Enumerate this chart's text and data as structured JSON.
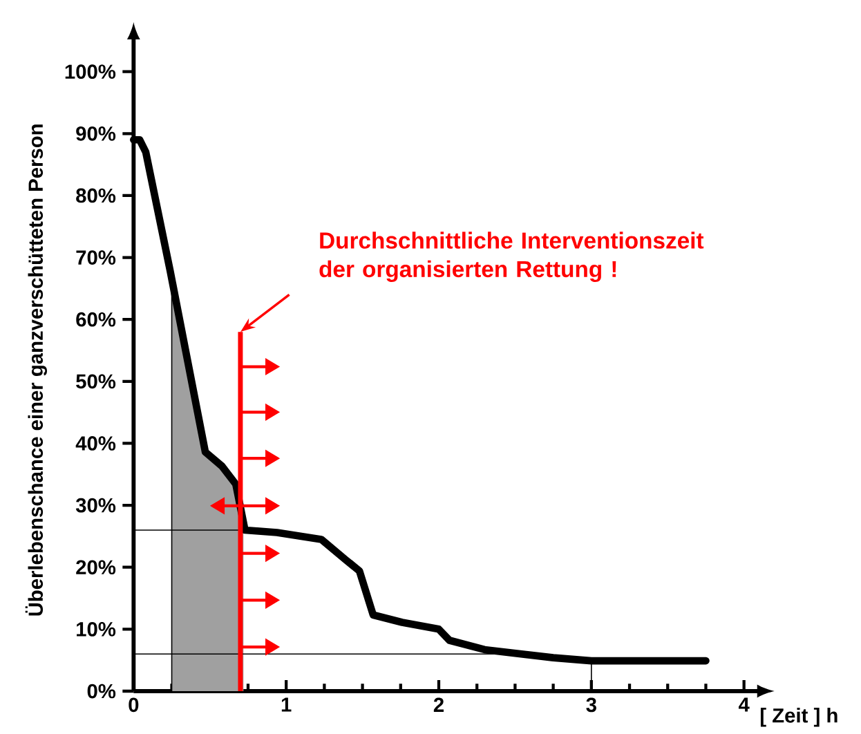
{
  "chart_data": {
    "type": "line",
    "ylabel": "Überlebenschance einer ganzverschütteten Person",
    "xlabel": "[ Zeit ] h",
    "x": [
      0,
      0.04,
      0.08,
      0.24,
      0.47,
      0.58,
      0.67,
      0.73,
      0.94,
      1.23,
      1.39,
      1.48,
      1.57,
      1.76,
      2.0,
      2.07,
      2.3,
      2.75,
      3.0,
      3.75
    ],
    "series": [
      {
        "color": "#000000",
        "values": [
          89,
          89,
          87,
          67.8,
          38.6,
          36.3,
          33.4,
          26,
          25.6,
          24.5,
          21.2,
          19.4,
          12.3,
          11.1,
          10,
          8.2,
          6.7,
          5.4,
          4.9,
          4.9
        ]
      }
    ],
    "xlim": [
      0,
      4.2
    ],
    "ylim": [
      0,
      108
    ],
    "xticks": [
      0,
      1,
      2,
      3,
      4
    ],
    "yticks": [
      {
        "value": 0,
        "label": "0%"
      },
      {
        "value": 10,
        "label": "10%"
      },
      {
        "value": 20,
        "label": "20%"
      },
      {
        "value": 30,
        "label": "30%"
      },
      {
        "value": 40,
        "label": "40%"
      },
      {
        "value": 50,
        "label": "50%"
      },
      {
        "value": 60,
        "label": "60%"
      },
      {
        "value": 70,
        "label": "70%"
      },
      {
        "value": 80,
        "label": "80%"
      },
      {
        "value": 90,
        "label": "90%"
      },
      {
        "value": 100,
        "label": "100%"
      }
    ],
    "bands": [
      {
        "axis": "x",
        "from": 0.25,
        "to": 0.72,
        "color": "#a0a0a0"
      }
    ],
    "ref_lines": [
      {
        "axis": "y",
        "value": 26,
        "color": "#000000"
      },
      {
        "axis": "y",
        "value": 6,
        "color": "#000000"
      },
      {
        "axis": "x",
        "value": 3,
        "color": "#000000"
      },
      {
        "axis": "x",
        "value": 0.7,
        "color": "#ff0000"
      }
    ],
    "annotations": [
      "Durchschnittliche Interventionszeit der organisierten Rettung !"
    ],
    "grid": false,
    "marker": "none",
    "line_style": "solid"
  }
}
